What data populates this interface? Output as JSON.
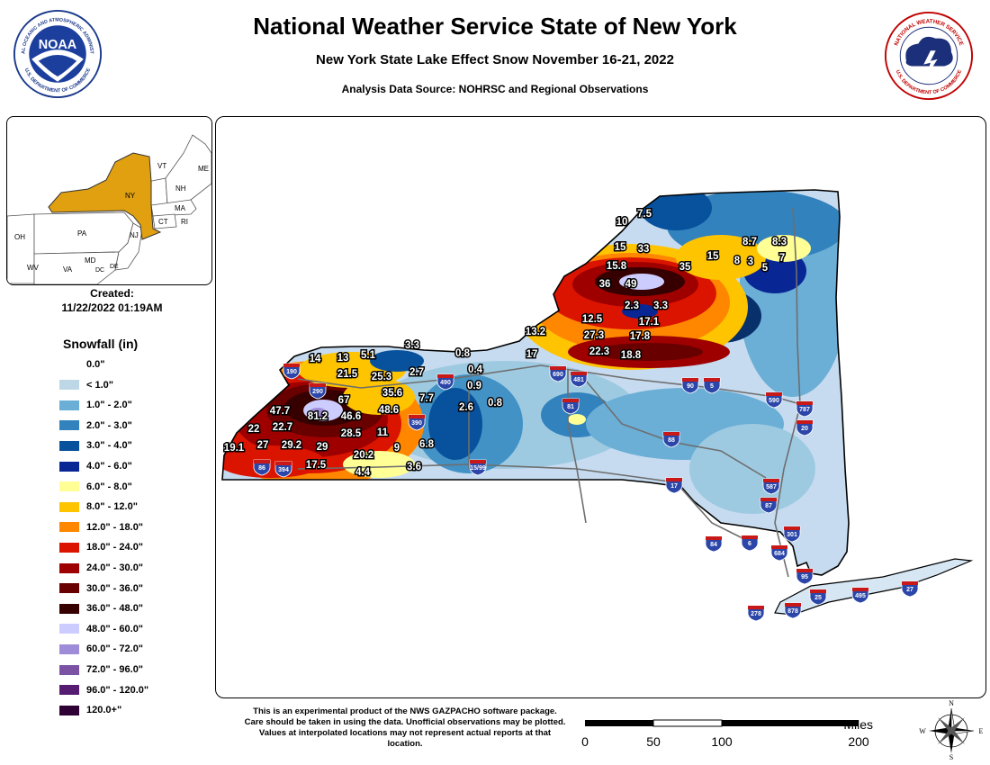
{
  "header": {
    "title": "National Weather Service State of New York",
    "subtitle": "New York State Lake Effect Snow November 16-21, 2022",
    "source": "Analysis Data Source: NOHRSC and Regional Observations"
  },
  "logos": {
    "noaa_center": "NOAA",
    "noaa_ring": "NATIONAL OCEANIC AND ATMOSPHERIC ADMINISTRATION",
    "noaa_ring_bottom": "U.S. DEPARTMENT OF COMMERCE",
    "nws_ring": "NATIONAL WEATHER SERVICE",
    "nws_ring_bottom": "U.S. DEPARTMENT OF COMMERCE"
  },
  "inset": {
    "highlight_color": "#e0a010",
    "labels": [
      "NY",
      "VT",
      "NH",
      "ME",
      "MA",
      "CT",
      "RI",
      "NJ",
      "PA",
      "OH",
      "WV",
      "MD",
      "DE",
      "VA",
      "DC"
    ]
  },
  "created": {
    "label": "Created:",
    "timestamp": "11/22/2022 01:19AM"
  },
  "legend": {
    "title": "Snowfall (in)",
    "items": [
      {
        "label": "0.0\"",
        "color": "#ffffff"
      },
      {
        "label": "< 1.0\"",
        "color": "#bdd7e7"
      },
      {
        "label": "1.0\" - 2.0\"",
        "color": "#6baed6"
      },
      {
        "label": "2.0\" - 3.0\"",
        "color": "#3182bd"
      },
      {
        "label": "3.0\" - 4.0\"",
        "color": "#08519c"
      },
      {
        "label": "4.0\" - 6.0\"",
        "color": "#082694"
      },
      {
        "label": "6.0\" - 8.0\"",
        "color": "#ffff96"
      },
      {
        "label": "8.0\" - 12.0\"",
        "color": "#ffc400"
      },
      {
        "label": "12.0\" - 18.0\"",
        "color": "#ff8700"
      },
      {
        "label": "18.0\" - 24.0\"",
        "color": "#db1400"
      },
      {
        "label": "24.0\" - 30.0\"",
        "color": "#9e0000"
      },
      {
        "label": "30.0\" - 36.0\"",
        "color": "#690000"
      },
      {
        "label": "36.0\" - 48.0\"",
        "color": "#360000"
      },
      {
        "label": "48.0\" - 60.0\"",
        "color": "#ccccff"
      },
      {
        "label": "60.0\" - 72.0\"",
        "color": "#9f8cd8"
      },
      {
        "label": "72.0\" - 96.0\"",
        "color": "#7c52a5"
      },
      {
        "label": "96.0\" - 120.0\"",
        "color": "#561c72"
      },
      {
        "label": "120.0+\"",
        "color": "#2e0033"
      }
    ]
  },
  "observations": [
    "10",
    "7.5",
    "15",
    "33",
    "15.8",
    "35",
    "15",
    "8.7",
    "8.3",
    "8",
    "3",
    "5",
    "7",
    "36",
    "49",
    "2.3",
    "3.3",
    "17.1",
    "12.5",
    "13.2",
    "27.3",
    "17.8",
    "17",
    "22.3",
    "18.8",
    "3.3",
    "0.8",
    "14",
    "13",
    "5.1",
    "21.5",
    "25.3",
    "2.7",
    "0.4",
    "0.9",
    "67",
    "35.6",
    "7.7",
    "47.7",
    "81.2",
    "46.6",
    "48.6",
    "2.6",
    "0.8",
    "22",
    "22.7",
    "28.5",
    "11",
    "19.1",
    "27",
    "29.2",
    "29",
    "20.2",
    "9",
    "6.8",
    "17.5",
    "4.4",
    "3.6"
  ],
  "interstates": [
    "190",
    "290",
    "490",
    "690",
    "481",
    "90",
    "5",
    "590",
    "787",
    "390",
    "81",
    "88",
    "20",
    "86",
    "394",
    "15/99",
    "17",
    "587",
    "87",
    "301",
    "684",
    "95",
    "25",
    "495",
    "27",
    "84",
    "6",
    "278",
    "878"
  ],
  "disclaimer": "This is an experimental product of the NWS GAZPACHO software package. Care should be taken in using the data. Unofficial observations may be plotted. Values at interpolated locations may not represent actual reports at that location.",
  "scale": {
    "unit": "Miles",
    "ticks": [
      "0",
      "50",
      "100",
      "200"
    ]
  },
  "compass": {
    "n": "N",
    "s": "S",
    "e": "E",
    "w": "W"
  }
}
